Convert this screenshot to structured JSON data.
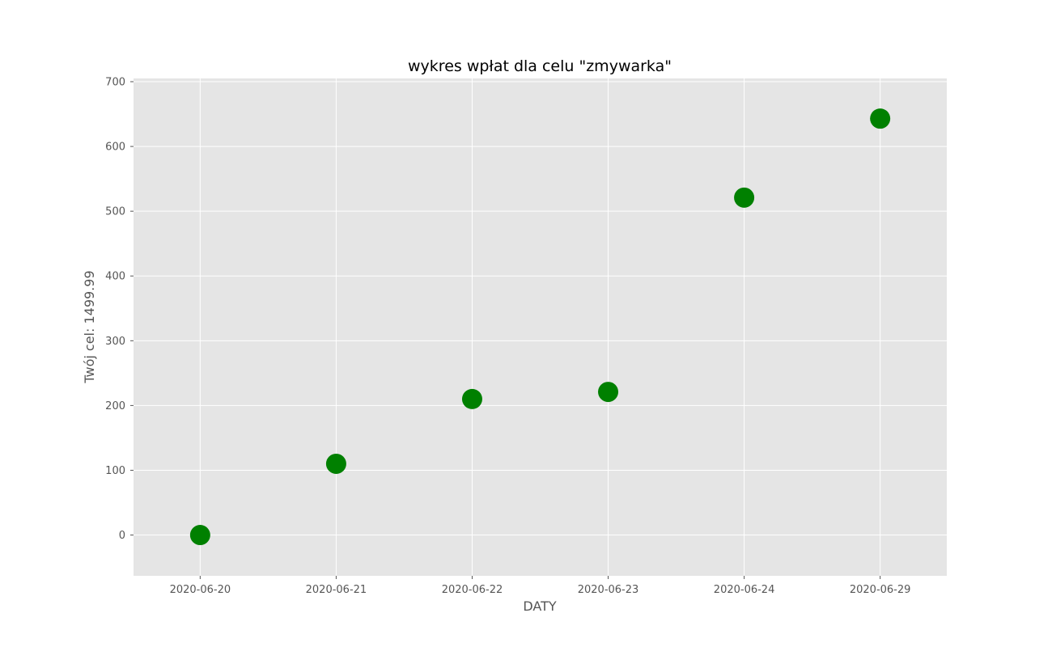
{
  "chart_data": {
    "type": "scatter",
    "title": "wykres wpłat dla celu \"zmywarka\"",
    "xlabel": "DATY",
    "ylabel": "Twój cel: 1499.99",
    "categories": [
      "2020-06-20",
      "2020-06-21",
      "2020-06-22",
      "2020-06-23",
      "2020-06-24",
      "2020-06-29"
    ],
    "series": [
      {
        "values": [
          0,
          110,
          210,
          221,
          521,
          643
        ]
      }
    ],
    "ylim": [
      -63,
      705
    ],
    "yticks": [
      0,
      100,
      200,
      300,
      400,
      500,
      600,
      700
    ],
    "grid": true,
    "legend": "none",
    "colors": {
      "background": "#e5e5e5",
      "grid": "#ffffff",
      "marker": "#008000"
    }
  }
}
